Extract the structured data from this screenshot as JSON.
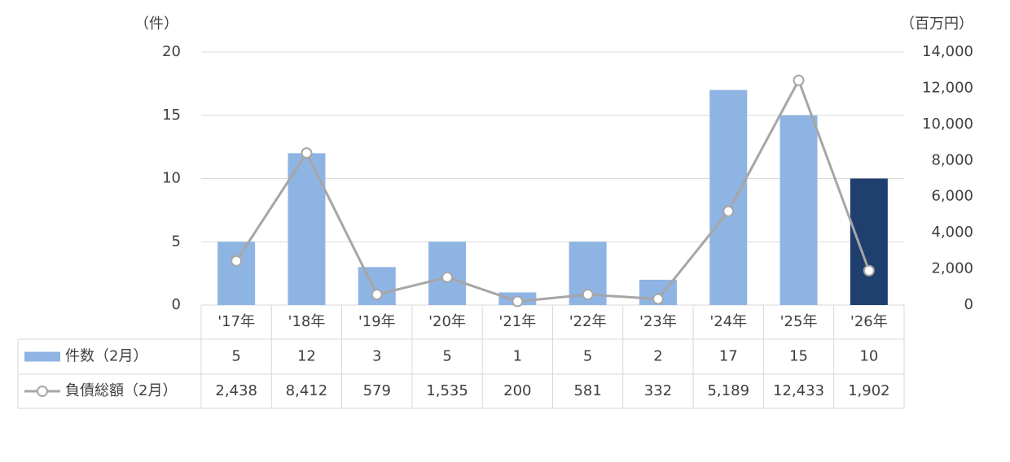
{
  "chart_data": {
    "type": "bar-line",
    "y_label": "（件）",
    "y2_label": "（百万円）",
    "categories": [
      "'17年",
      "'18年",
      "'19年",
      "'20年",
      "'21年",
      "'22年",
      "'23年",
      "'24年",
      "'25年",
      "'26年"
    ],
    "series": [
      {
        "name": "件数（2月）",
        "type": "bar",
        "colors": [
          "#8eb4e3",
          "#8eb4e3",
          "#8eb4e3",
          "#8eb4e3",
          "#8eb4e3",
          "#8eb4e3",
          "#8eb4e3",
          "#8eb4e3",
          "#8eb4e3",
          "#1f3f6e"
        ],
        "values": [
          5,
          12,
          3,
          5,
          1,
          5,
          2,
          17,
          15,
          10
        ]
      },
      {
        "name": "負債総額（2月）",
        "type": "line",
        "axis": "y2",
        "color": "#a6a6a6",
        "values": [
          2438,
          8412,
          579,
          1535,
          200,
          581,
          332,
          5189,
          12433,
          1902
        ],
        "value_labels": [
          "2,438",
          "8,412",
          "579",
          "1,535",
          "200",
          "581",
          "332",
          "5,189",
          "12,433",
          "1,902"
        ]
      }
    ],
    "ylim": [
      0,
      20
    ],
    "yticks": [
      0,
      5,
      10,
      15,
      20
    ],
    "y2lim": [
      0,
      14000
    ],
    "y2ticks": [
      0,
      {
        "value": 2000,
        "label": "2,000"
      },
      {
        "value": 4000,
        "label": "4,000"
      },
      {
        "value": 6000,
        "label": "6,000"
      },
      {
        "value": 8000,
        "label": "8,000"
      },
      {
        "value": 10000,
        "label": "10,000"
      },
      {
        "value": 12000,
        "label": "12,000"
      },
      {
        "value": 14000,
        "label": "14,000"
      }
    ],
    "grid": true
  }
}
